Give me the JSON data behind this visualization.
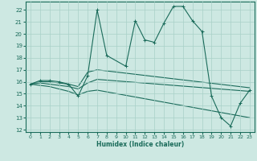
{
  "xlabel": "Humidex (Indice chaleur)",
  "xlim": [
    -0.5,
    23.5
  ],
  "ylim": [
    11.8,
    22.7
  ],
  "yticks": [
    12,
    13,
    14,
    15,
    16,
    17,
    18,
    19,
    20,
    21,
    22
  ],
  "xticks": [
    0,
    1,
    2,
    3,
    4,
    5,
    6,
    7,
    8,
    9,
    10,
    11,
    12,
    13,
    14,
    15,
    16,
    17,
    18,
    19,
    20,
    21,
    22,
    23
  ],
  "bg_color": "#cde8e2",
  "grid_color": "#a8d0c8",
  "line_color": "#1a6b5a",
  "lines": [
    {
      "x": [
        0,
        1,
        2,
        3,
        4,
        5,
        6,
        7,
        8,
        10,
        11,
        12,
        13,
        14,
        15,
        16,
        17,
        18,
        19,
        20,
        21,
        22,
        23
      ],
      "y": [
        15.8,
        16.1,
        16.1,
        16.0,
        15.8,
        14.8,
        16.5,
        22.0,
        18.2,
        17.3,
        21.1,
        19.5,
        19.3,
        20.9,
        22.3,
        22.3,
        21.1,
        20.2,
        14.8,
        13.0,
        12.3,
        14.2,
        15.3
      ],
      "marker": "+"
    },
    {
      "x": [
        0,
        1,
        2,
        3,
        4,
        5,
        6,
        7,
        23
      ],
      "y": [
        15.8,
        16.0,
        16.0,
        15.9,
        15.8,
        15.6,
        16.8,
        17.0,
        15.5
      ],
      "marker": null
    },
    {
      "x": [
        0,
        1,
        2,
        3,
        4,
        5,
        6,
        7,
        23
      ],
      "y": [
        15.8,
        15.9,
        15.8,
        15.7,
        15.6,
        15.4,
        15.9,
        16.2,
        15.2
      ],
      "marker": null
    },
    {
      "x": [
        0,
        1,
        2,
        3,
        4,
        5,
        6,
        7,
        23
      ],
      "y": [
        15.8,
        15.7,
        15.6,
        15.4,
        15.2,
        14.9,
        15.2,
        15.3,
        13.0
      ],
      "marker": null
    }
  ]
}
